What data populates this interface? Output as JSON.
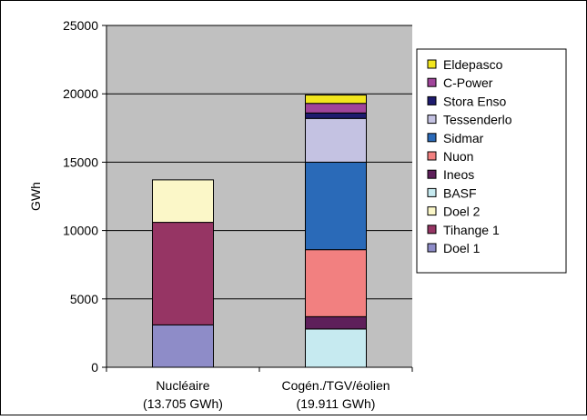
{
  "chart_data": {
    "type": "bar",
    "stacked": true,
    "ylabel": "GWh",
    "ylim": [
      0,
      25000
    ],
    "yticks": [
      0,
      5000,
      10000,
      15000,
      20000,
      25000
    ],
    "grid": true,
    "legend_position": "right",
    "categories": [
      {
        "line1": "Nucléaire",
        "line2": "(13.705 GWh)"
      },
      {
        "line1": "Cogén./TGV/éolien",
        "line2": "(19.911 GWh)"
      }
    ],
    "series": [
      {
        "name": "Doel 1",
        "color": "#8E8CC8",
        "values": [
          3100,
          0
        ]
      },
      {
        "name": "Tihange 1",
        "color": "#963564",
        "values": [
          7500,
          0
        ]
      },
      {
        "name": "Doel 2",
        "color": "#FBF7C8",
        "values": [
          3105,
          0
        ]
      },
      {
        "name": "BASF",
        "color": "#C6EAF0",
        "values": [
          0,
          2800
        ]
      },
      {
        "name": "Ineos",
        "color": "#5E1F5A",
        "values": [
          0,
          900
        ]
      },
      {
        "name": "Nuon",
        "color": "#F28080",
        "values": [
          0,
          4900
        ]
      },
      {
        "name": "Sidmar",
        "color": "#2A6AB8",
        "values": [
          0,
          6400
        ]
      },
      {
        "name": "Tessenderlo",
        "color": "#C4C2E2",
        "values": [
          0,
          3200
        ]
      },
      {
        "name": "Stora Enso",
        "color": "#1E1B6E",
        "values": [
          0,
          400
        ]
      },
      {
        "name": "C-Power",
        "color": "#A0449A",
        "values": [
          0,
          700
        ]
      },
      {
        "name": "Eldepasco",
        "color": "#F2E61E",
        "values": [
          0,
          611
        ]
      }
    ]
  }
}
